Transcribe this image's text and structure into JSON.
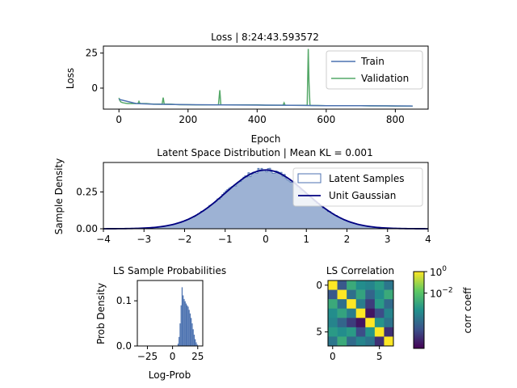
{
  "colors": {
    "train": "#4c72b0",
    "validation": "#55a868",
    "latent_fill": "#4c72b0",
    "gaussian": "#000080",
    "prob_hist": "#4c72b0"
  },
  "chart_data": [
    {
      "id": "loss",
      "type": "line",
      "title": "Loss | 8:24:43.593572",
      "xlabel": "Epoch",
      "ylabel": "Loss",
      "xlim": [
        -45,
        895
      ],
      "ylim": [
        -15,
        30
      ],
      "xticks": [
        0,
        200,
        400,
        600,
        800
      ],
      "yticks": [
        25,
        0
      ],
      "legend": {
        "position": "top-right",
        "entries": [
          "Train",
          "Validation"
        ]
      },
      "series": [
        {
          "name": "Validation",
          "x": [
            0,
            3,
            6,
            12,
            25,
            40,
            55,
            58,
            61,
            80,
            100,
            125,
            128,
            131,
            150,
            175,
            200,
            225,
            250,
            275,
            288,
            292,
            295,
            300,
            325,
            350,
            375,
            400,
            425,
            450,
            475,
            478,
            481,
            500,
            520,
            535,
            545,
            548,
            550,
            553,
            556,
            575,
            600,
            625,
            650,
            675,
            700,
            725,
            750,
            775,
            800,
            825,
            850
          ],
          "values": [
            -7,
            -9,
            -10,
            -10.5,
            -11,
            -11,
            -11,
            -9.5,
            -11,
            -11,
            -11.5,
            -11.5,
            -6.8,
            -11.5,
            -11.5,
            -11.8,
            -11.8,
            -12,
            -12,
            -12,
            -12,
            -1.5,
            -12,
            -12,
            -12,
            -12,
            -12,
            -12,
            -12.2,
            -12.2,
            -12.2,
            -10.5,
            -12.2,
            -12.3,
            -12.3,
            -12.3,
            -12.3,
            28,
            4.5,
            -12.3,
            -12.4,
            -12.4,
            -12.5,
            -12.5,
            -12.6,
            -12.6,
            -12.6,
            -12.7,
            -12.7,
            -12.7,
            -12.8,
            -12.8,
            -12.8
          ]
        },
        {
          "name": "Train",
          "x": [
            0,
            50,
            100,
            200,
            300,
            400,
            500,
            600,
            700,
            800,
            850
          ],
          "values": [
            -8,
            -11,
            -11.5,
            -11.8,
            -12,
            -12.1,
            -12.3,
            -12.5,
            -12.6,
            -12.7,
            -12.8
          ]
        }
      ]
    },
    {
      "id": "latent",
      "type": "area",
      "title": "Latent Space Distribution | Mean KL = 0.001",
      "xlabel": "",
      "ylabel": "Sample Density",
      "xlim": [
        -4,
        4
      ],
      "ylim": [
        0,
        0.45
      ],
      "xticks": [
        -4,
        -3,
        -2,
        -1,
        0,
        1,
        2,
        3,
        4
      ],
      "yticks": [
        0.0,
        0.25
      ],
      "ytick_labels": [
        "0.00",
        "0.25"
      ],
      "legend": {
        "position": "top-right",
        "entries": [
          "Latent Samples",
          "Unit Gaussian"
        ]
      }
    },
    {
      "id": "ls_prob",
      "type": "bar",
      "title": "LS Sample Probabilities",
      "xlabel": "Log-Prob",
      "ylabel": "Prob Density",
      "xlim": [
        -35,
        30
      ],
      "ylim": [
        0,
        0.145
      ],
      "xticks": [
        -25,
        0,
        25
      ],
      "yticks": [
        0.0,
        0.1
      ],
      "ytick_labels": [
        "0.0",
        "0.1"
      ],
      "bins": [
        5,
        6,
        7,
        8,
        9,
        10,
        11,
        12,
        13,
        14,
        15,
        16,
        17,
        18,
        19,
        20,
        21,
        22,
        23,
        24
      ],
      "values": [
        0.005,
        0.02,
        0.05,
        0.09,
        0.13,
        0.112,
        0.104,
        0.099,
        0.094,
        0.09,
        0.087,
        0.08,
        0.072,
        0.062,
        0.05,
        0.037,
        0.025,
        0.015,
        0.008,
        0.003
      ]
    },
    {
      "id": "ls_corr",
      "type": "heatmap",
      "title": "LS Correlation",
      "xticks": [
        0,
        5
      ],
      "yticks": [
        0,
        5
      ],
      "colorbar": {
        "label": "corr coeff",
        "tick_base": "10",
        "ticks": [
          {
            "exp": "0",
            "frac": 1.0
          },
          {
            "exp": "−2",
            "frac": 0.72
          }
        ]
      },
      "values": [
        [
          1.0,
          0.004,
          0.05,
          0.02,
          0.015,
          0.03,
          0.01
        ],
        [
          0.004,
          1.0,
          0.008,
          0.04,
          0.006,
          0.02,
          0.05
        ],
        [
          0.05,
          0.008,
          1.0,
          0.012,
          0.002,
          0.03,
          0.007
        ],
        [
          0.02,
          0.04,
          0.012,
          1.0,
          0.0008,
          0.003,
          0.015
        ],
        [
          0.015,
          0.006,
          0.002,
          0.0008,
          1.0,
          0.025,
          0.009
        ],
        [
          0.03,
          0.02,
          0.03,
          0.003,
          0.025,
          1.0,
          0.0015
        ],
        [
          0.01,
          0.05,
          0.007,
          0.015,
          0.009,
          0.0015,
          1.0
        ]
      ]
    }
  ]
}
